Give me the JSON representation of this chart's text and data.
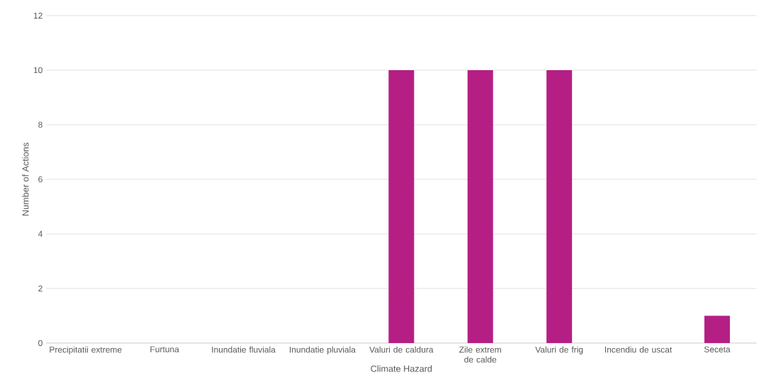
{
  "chart_data": {
    "type": "bar",
    "xlabel": "Climate Hazard",
    "ylabel": "Number of Actions",
    "categories": [
      "Precipitatii extreme",
      "Furtuna",
      "Inundatie fluviala",
      "Inundatie pluviala",
      "Valuri de caldura",
      "Zile extrem de calde",
      "Valuri de frig",
      "Incendiu de uscat",
      "Seceta"
    ],
    "values": [
      0,
      0,
      0,
      0,
      10,
      10,
      10,
      0,
      1
    ],
    "color": "#b51f84",
    "ylim": [
      0,
      12
    ],
    "yticks": [
      0,
      2,
      4,
      6,
      8,
      10,
      12
    ],
    "grid": "y"
  }
}
